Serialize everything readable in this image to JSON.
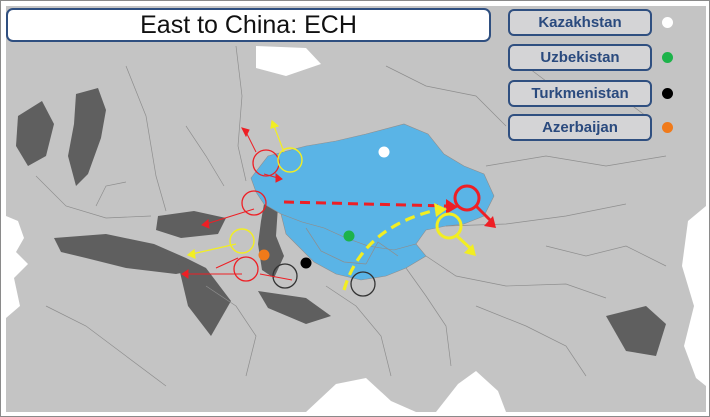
{
  "title": "East to China: ECH",
  "legend": [
    {
      "label": "Kazakhstan",
      "color": "#ffffff"
    },
    {
      "label": "Uzbekistan",
      "color": "#1db34a"
    },
    {
      "label": "Turkmenistan",
      "color": "#000000"
    },
    {
      "label": "Azerbaijan",
      "color": "#f07a1a"
    }
  ],
  "colors": {
    "land": "#c4c4c4",
    "ocean": "#ffffff",
    "kazakhstan_fill": "#5ab4e6",
    "water_body": "#5f5f5f",
    "route_red": "#ee1f25",
    "route_yellow": "#f2ee22",
    "checkpoint_dark": "#333333",
    "border_lines": "#8e8e8e"
  },
  "routes": [
    {
      "name": "red-dashed-route",
      "color": "#ee1f25"
    },
    {
      "name": "yellow-dashed-route",
      "color": "#f2ee22"
    }
  ]
}
